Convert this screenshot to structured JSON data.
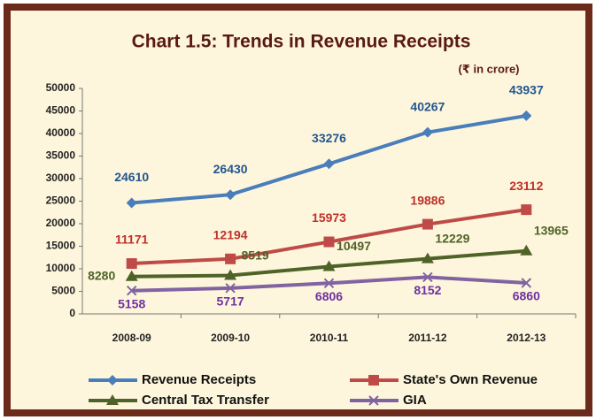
{
  "chart_data": {
    "type": "line",
    "title": "Chart 1.5: Trends in Revenue Receipts",
    "subtitle": "(₹ in crore)",
    "categories": [
      "2008-09",
      "2009-10",
      "2010-11",
      "2011-12",
      "2012-13"
    ],
    "series": [
      {
        "name": "Revenue Receipts",
        "color": "#4a7ebb",
        "label_color": "#23568f",
        "marker": "diamond",
        "values": [
          24610,
          26430,
          33276,
          40267,
          43937
        ]
      },
      {
        "name": "State's Own Revenue",
        "color": "#be4b48",
        "label_color": "#c0302b",
        "marker": "square",
        "values": [
          11171,
          12194,
          15973,
          19886,
          23112
        ]
      },
      {
        "name": "Central Tax Transfer",
        "color": "#4f6228",
        "label_color": "#4f6228",
        "marker": "triangle",
        "values": [
          8280,
          8519,
          10497,
          12229,
          13965
        ]
      },
      {
        "name": "GIA",
        "color": "#8064a2",
        "label_color": "#7030a0",
        "marker": "x",
        "values": [
          5158,
          5717,
          6806,
          8152,
          6860
        ]
      }
    ],
    "ylim": [
      0,
      50000
    ],
    "yticks": [
      0,
      5000,
      10000,
      15000,
      20000,
      25000,
      30000,
      35000,
      40000,
      45000,
      50000
    ],
    "grid": false
  }
}
